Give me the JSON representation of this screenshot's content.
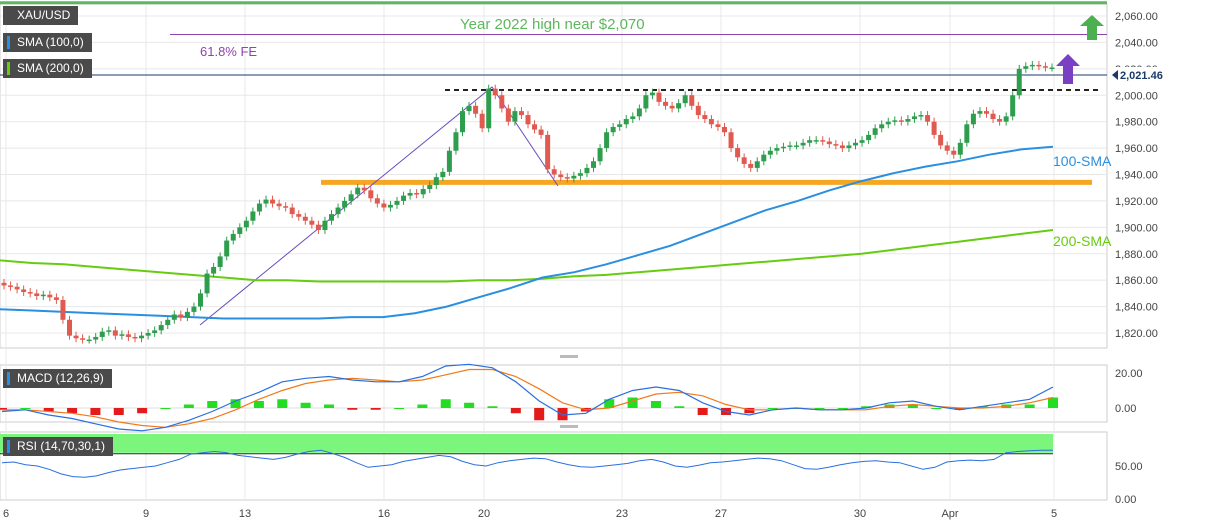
{
  "chart_data": {
    "type": "candlestick",
    "symbol": "XAU/USD",
    "indicators": {
      "sma100_label": "SMA (100,0)",
      "sma200_label": "SMA (200,0)",
      "macd_label": "MACD (12,26,9)",
      "rsi_label": "RSI (14,70,30,1)"
    },
    "price_axis": {
      "ticks": [
        "2,060.00",
        "2,040.00",
        "2,020.00",
        "2,000.00",
        "1,980.00",
        "1,960.00",
        "1,940.00",
        "1,920.00",
        "1,900.00",
        "1,880.00",
        "1,860.00",
        "1,840.00",
        "1,820.00"
      ],
      "ylim": [
        1810,
        2073
      ]
    },
    "last_price": "2,021.46",
    "x_labels": [
      "6",
      "9",
      "13",
      "16",
      "20",
      "23",
      "27",
      "30",
      "Apr",
      "5"
    ],
    "annotations": {
      "year_high": "Year 2022 high near $2,070",
      "fe": "61.8% FE",
      "sma100": "100-SMA",
      "sma200": "200-SMA"
    },
    "levels": {
      "year_high": 2070,
      "fe_618": 2046,
      "resistance": 2004,
      "support": 1934
    },
    "close": [
      1856,
      1855,
      1853,
      1851,
      1850,
      1848,
      1849,
      1847,
      1845,
      1830,
      1818,
      1816,
      1815,
      1815,
      1817,
      1821,
      1822,
      1818,
      1819,
      1817,
      1816,
      1818,
      1820,
      1822,
      1826,
      1830,
      1834,
      1832,
      1836,
      1840,
      1850,
      1865,
      1870,
      1878,
      1890,
      1895,
      1900,
      1905,
      1912,
      1918,
      1921,
      1918,
      1916,
      1915,
      1910,
      1908,
      1905,
      1902,
      1898,
      1905,
      1910,
      1915,
      1920,
      1925,
      1930,
      1928,
      1922,
      1918,
      1915,
      1917,
      1920,
      1924,
      1926,
      1925,
      1929,
      1932,
      1938,
      1942,
      1958,
      1972,
      1988,
      1992,
      1986,
      1975,
      2005,
      2000,
      1990,
      1980,
      1988,
      1985,
      1978,
      1974,
      1970,
      1944,
      1940,
      1938,
      1937,
      1939,
      1941,
      1945,
      1950,
      1960,
      1972,
      1976,
      1978,
      1982,
      1984,
      1990,
      2000,
      2002,
      1995,
      1992,
      1990,
      1994,
      2000,
      1992,
      1985,
      1982,
      1978,
      1976,
      1972,
      1960,
      1953,
      1948,
      1945,
      1950,
      1955,
      1958,
      1960,
      1961,
      1962,
      1962,
      1964,
      1966,
      1966,
      1965,
      1963,
      1962,
      1960,
      1962,
      1964,
      1966,
      1970,
      1975,
      1978,
      1980,
      1981,
      1980,
      1982,
      1984,
      1985,
      1980,
      1970,
      1962,
      1958,
      1955,
      1964,
      1978,
      1986,
      1988,
      1986,
      1982,
      1980,
      1984,
      2000,
      2020,
      2022,
      2023,
      2022,
      2021,
      2021
    ],
    "sma100": [
      1838,
      1837,
      1836,
      1835,
      1834,
      1833,
      1832,
      1831,
      1831,
      1831,
      1831,
      1832,
      1832,
      1835,
      1840,
      1847,
      1854,
      1862,
      1866,
      1872,
      1879,
      1886,
      1895,
      1904,
      1913,
      1920,
      1928,
      1935,
      1941,
      1946,
      1950,
      1955,
      1959,
      1961
    ],
    "sma200": [
      1875,
      1873,
      1872,
      1870,
      1868,
      1866,
      1864,
      1862,
      1860,
      1860,
      1859,
      1859,
      1859,
      1859,
      1859,
      1860,
      1860,
      1861,
      1863,
      1864,
      1866,
      1868,
      1870,
      1872,
      1874,
      1876,
      1878,
      1880,
      1883,
      1886,
      1889,
      1892,
      1895,
      1898
    ],
    "macd": {
      "axis": [
        "20.00",
        "0.00"
      ],
      "macd": [
        -2,
        -1,
        -4,
        -6,
        -9,
        -12,
        -13,
        -11,
        -7,
        -2,
        4,
        9,
        15,
        17,
        18,
        16,
        15,
        15,
        18,
        24,
        25,
        23,
        15,
        4,
        -4,
        -3,
        5,
        10,
        12,
        10,
        3,
        -2,
        -4,
        -1,
        0,
        -1,
        -1,
        0,
        3,
        4,
        1,
        -1,
        1,
        3,
        5,
        12
      ],
      "signal": [
        -1,
        -1,
        -2,
        -3,
        -5,
        -8,
        -10,
        -11,
        -9,
        -6,
        -1,
        5,
        10,
        14,
        16,
        17,
        16,
        15,
        16,
        19,
        22,
        22,
        18,
        11,
        3,
        -1,
        0,
        4,
        8,
        9,
        7,
        2,
        -1,
        -1,
        0,
        -1,
        -1,
        -1,
        1,
        2,
        1,
        0,
        0,
        1,
        3,
        6
      ],
      "hist": [
        -1,
        0,
        -2,
        -3,
        -4,
        -4,
        -3,
        0,
        2,
        4,
        5,
        4,
        5,
        3,
        2,
        -1,
        -1,
        0,
        2,
        5,
        3,
        1,
        -3,
        -7,
        -7,
        -2,
        5,
        6,
        4,
        1,
        -4,
        -4,
        -3,
        0,
        0,
        0,
        0,
        1,
        2,
        2,
        0,
        -1,
        1,
        2,
        2,
        6
      ]
    },
    "rsi": {
      "axis": [
        "50.00",
        "0.00"
      ],
      "overbought": 70,
      "oversold": 30,
      "values": [
        55,
        56,
        52,
        50,
        45,
        38,
        34,
        33,
        35,
        40,
        44,
        46,
        48,
        50,
        55,
        60,
        68,
        70,
        72,
        70,
        66,
        64,
        62,
        60,
        63,
        68,
        72,
        74,
        69,
        63,
        55,
        48,
        50,
        52,
        57,
        60,
        63,
        66,
        64,
        57,
        52,
        50,
        55,
        58,
        60,
        62,
        61,
        56,
        52,
        49,
        48,
        50,
        52,
        54,
        58,
        60,
        56,
        50,
        48,
        51,
        55,
        56,
        58,
        60,
        62,
        61,
        58,
        52,
        46,
        45,
        48,
        52,
        55,
        57,
        58,
        56,
        55,
        50,
        45,
        48,
        56,
        58,
        59,
        58,
        60,
        70,
        72,
        73,
        74,
        74
      ]
    },
    "colors": {
      "up": "#2e9e4e",
      "down": "#e05a4f",
      "sma100": "#2a8fe0",
      "sma200": "#66cc11",
      "support": "#f5a623",
      "year_high": "#5cb85c",
      "fe": "#8e44ad",
      "arrow_up": "#4caf50",
      "arrow_purple": "#7b3fc4"
    }
  }
}
